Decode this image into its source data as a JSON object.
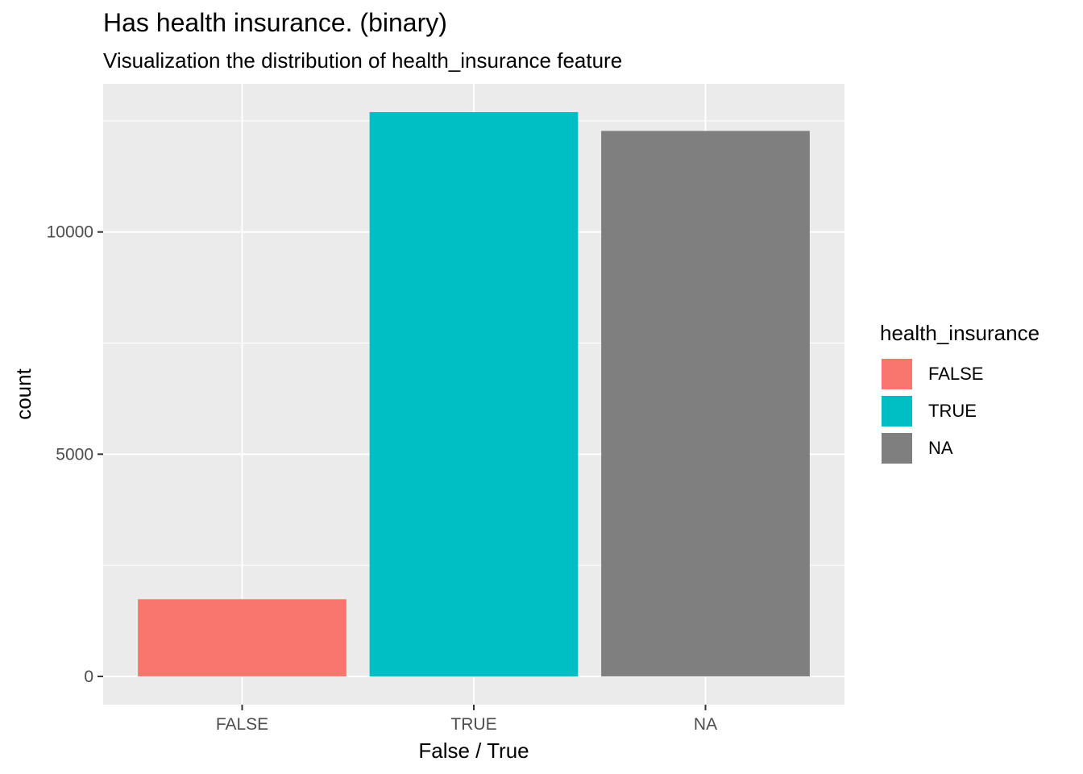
{
  "chart_data": {
    "type": "bar",
    "title": "Has health insurance. (binary)",
    "subtitle": "Visualization the distribution of health_insurance feature",
    "xlabel": "False / True",
    "ylabel": "count",
    "categories": [
      "FALSE",
      "TRUE",
      "NA"
    ],
    "values": [
      1736,
      12697,
      12274
    ],
    "colors": [
      "#F8766D",
      "#00BFC4",
      "#7F7F7F"
    ],
    "ylim": [
      -636,
      13333
    ],
    "yticks": [
      0,
      5000,
      10000
    ],
    "ytick_labels": [
      "0",
      "5000",
      "10000"
    ],
    "grid": true,
    "legend": {
      "title": "health_insurance",
      "position": "right",
      "entries": [
        "FALSE",
        "TRUE",
        "NA"
      ]
    },
    "panel_background": "#EBEBEB",
    "grid_color": "#FFFFFF"
  }
}
